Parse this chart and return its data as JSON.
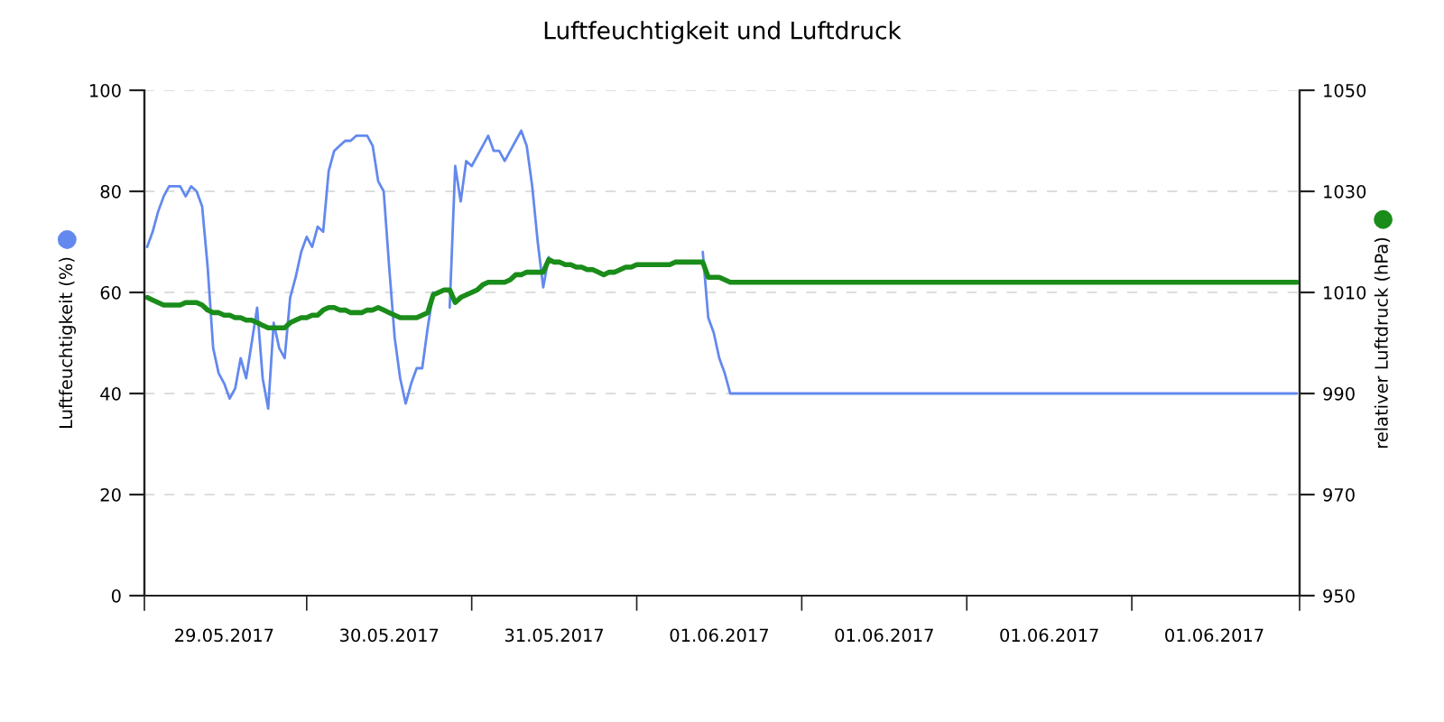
{
  "chart_data": {
    "type": "line",
    "title": "Luftfeuchtigkeit und Luftdruck",
    "ylabel": "Luftfeuchtigkeit (%)",
    "y2label": "relativer Luftdruck (hPa)",
    "categories": [
      null,
      null,
      null,
      null,
      null,
      null,
      null,
      null,
      null,
      null,
      null,
      null,
      null,
      null,
      "29.05.2017",
      null,
      null,
      null,
      null,
      null,
      null,
      null,
      null,
      null,
      null,
      null,
      null,
      null,
      null,
      null,
      null,
      null,
      null,
      null,
      null,
      null,
      null,
      null,
      null,
      null,
      null,
      null,
      null,
      null,
      "30.05.2017",
      null,
      null,
      null,
      null,
      null,
      null,
      null,
      null,
      null,
      null,
      null,
      null,
      null,
      null,
      null,
      null,
      null,
      null,
      null,
      null,
      null,
      null,
      null,
      null,
      null,
      null,
      null,
      null,
      null,
      "31.05.2017",
      null,
      null,
      null,
      null,
      null,
      null,
      null,
      null,
      null,
      null,
      null,
      null,
      null,
      null,
      null,
      null,
      null,
      null,
      null,
      null,
      null,
      null,
      null,
      null,
      null,
      null,
      null,
      null,
      null,
      "01.06.2017",
      null,
      null,
      null,
      null,
      null,
      null,
      null,
      null,
      null,
      null,
      null,
      null,
      null,
      null,
      null,
      null,
      null,
      null,
      null,
      null,
      null,
      null,
      null,
      null,
      null,
      null,
      null,
      null,
      null,
      "01.06.2017",
      null,
      null,
      null,
      null,
      null,
      null,
      null,
      null,
      null,
      null,
      null,
      null,
      null,
      null,
      null,
      null,
      null,
      null,
      null,
      null,
      null,
      null,
      null,
      null,
      null,
      null,
      null,
      null,
      null,
      "01.06.2017",
      null,
      null,
      null,
      null,
      null,
      null,
      null,
      null,
      null,
      null,
      null,
      null,
      null,
      null,
      null,
      null,
      null,
      null,
      null,
      null,
      null,
      null,
      null,
      null,
      null,
      null,
      null,
      null,
      null,
      "01.06.2017",
      null,
      null,
      null,
      null,
      null,
      null,
      null,
      null,
      null,
      null,
      null,
      null,
      null,
      null,
      null
    ],
    "ylim": [
      0,
      100
    ],
    "yticks": [
      0,
      20,
      40,
      60,
      80,
      100
    ],
    "y2lim": [
      950,
      1050
    ],
    "y2ticks": [
      950,
      970,
      990,
      1010,
      1030,
      1050
    ],
    "grid": "y",
    "series": [
      {
        "color": "#6389ee",
        "values": [
          69,
          72,
          76,
          79,
          81,
          81,
          81,
          79,
          81,
          80,
          77,
          65,
          49,
          44,
          42,
          39,
          41,
          47,
          43,
          50,
          57,
          43,
          37,
          54,
          49,
          47,
          59,
          63,
          68,
          71,
          69,
          73,
          72,
          84,
          88,
          89,
          90,
          90,
          91,
          91,
          91,
          89,
          82,
          80,
          65,
          51,
          43,
          38,
          42,
          45,
          45,
          53,
          60,
          null,
          null,
          57,
          85,
          78,
          86,
          85,
          87,
          89,
          91,
          88,
          88,
          86,
          88,
          90,
          92,
          89,
          81,
          70,
          61,
          67,
          null,
          null,
          null,
          null,
          null,
          null,
          null,
          null,
          null,
          null,
          null,
          null,
          null,
          null,
          null,
          null,
          null,
          null,
          null,
          null,
          null,
          null,
          null,
          null,
          null,
          null,
          null,
          68,
          55,
          52,
          47,
          44,
          40,
          40,
          40,
          40,
          40,
          40,
          40,
          40,
          40,
          40,
          40,
          40,
          40,
          40,
          40,
          40,
          40,
          40,
          40,
          40,
          40,
          40,
          40,
          40,
          40,
          40,
          40,
          40,
          40,
          40,
          40,
          40,
          40,
          40,
          40,
          40,
          40,
          40,
          40,
          40,
          40,
          40,
          40,
          40,
          40,
          40,
          40,
          40,
          40,
          40,
          40,
          40,
          40,
          40,
          40,
          40,
          40,
          40,
          40,
          40,
          40,
          40,
          40,
          40,
          40,
          40,
          40,
          40,
          40,
          40,
          40,
          40,
          40,
          40,
          40,
          40,
          40,
          40,
          40,
          40,
          40,
          40,
          40,
          40,
          40,
          40,
          40,
          40,
          40,
          40,
          40,
          40,
          40,
          40,
          40,
          40,
          40,
          40,
          40,
          40,
          40,
          40,
          40,
          40
        ]
      },
      {
        "color": "#1a8c1a",
        "axis": "y2",
        "values": [
          1009,
          1008.5,
          1008,
          1007.5,
          1007.5,
          1007.5,
          1007.5,
          1008,
          1008,
          1008,
          1007.5,
          1006.5,
          1006,
          1006,
          1005.5,
          1005.5,
          1005,
          1005,
          1004.5,
          1004.5,
          1004,
          1003.5,
          1003,
          1003,
          1003,
          1003,
          1004,
          1004.5,
          1005,
          1005,
          1005.5,
          1005.5,
          1006.5,
          1007,
          1007,
          1006.5,
          1006.5,
          1006,
          1006,
          1006,
          1006.5,
          1006.5,
          1007,
          1006.5,
          1006,
          1005.5,
          1005,
          1005,
          1005,
          1005,
          1005.5,
          1006,
          1009.5,
          1010,
          1010.5,
          1010.5,
          1008,
          1009,
          1009.5,
          1010,
          1010.5,
          1011.5,
          1012,
          1012,
          1012,
          1012,
          1012.5,
          1013.5,
          1013.5,
          1014,
          1014,
          1014,
          1014,
          1016.5,
          1016,
          1016,
          1015.5,
          1015.5,
          1015,
          1015,
          1014.5,
          1014.5,
          1014,
          1013.5,
          1014,
          1014,
          1014.5,
          1015,
          1015,
          1015.5,
          1015.5,
          1015.5,
          1015.5,
          1015.5,
          1015.5,
          1015.5,
          1016,
          1016,
          1016,
          1016,
          1016,
          1016,
          1013,
          1013,
          1013,
          1012.5,
          1012,
          1012,
          1012,
          1012,
          1012,
          1012,
          1012,
          1012,
          1012,
          1012,
          1012,
          1012,
          1012,
          1012,
          1012,
          1012,
          1012,
          1012,
          1012,
          1012,
          1012,
          1012,
          1012,
          1012,
          1012,
          1012,
          1012,
          1012,
          1012,
          1012,
          1012,
          1012,
          1012,
          1012,
          1012,
          1012,
          1012,
          1012,
          1012,
          1012,
          1012,
          1012,
          1012,
          1012,
          1012,
          1012,
          1012,
          1012,
          1012,
          1012,
          1012,
          1012,
          1012,
          1012,
          1012,
          1012,
          1012,
          1012,
          1012,
          1012,
          1012,
          1012,
          1012,
          1012,
          1012,
          1012,
          1012,
          1012,
          1012,
          1012,
          1012,
          1012,
          1012,
          1012,
          1012,
          1012,
          1012,
          1012,
          1012,
          1012,
          1012,
          1012,
          1012,
          1012,
          1012,
          1012,
          1012,
          1012,
          1012,
          1012,
          1012,
          1012,
          1012,
          1012,
          1012,
          1012,
          1012,
          1012,
          1012,
          1012,
          1012,
          1012,
          1012,
          1012
        ]
      }
    ]
  }
}
